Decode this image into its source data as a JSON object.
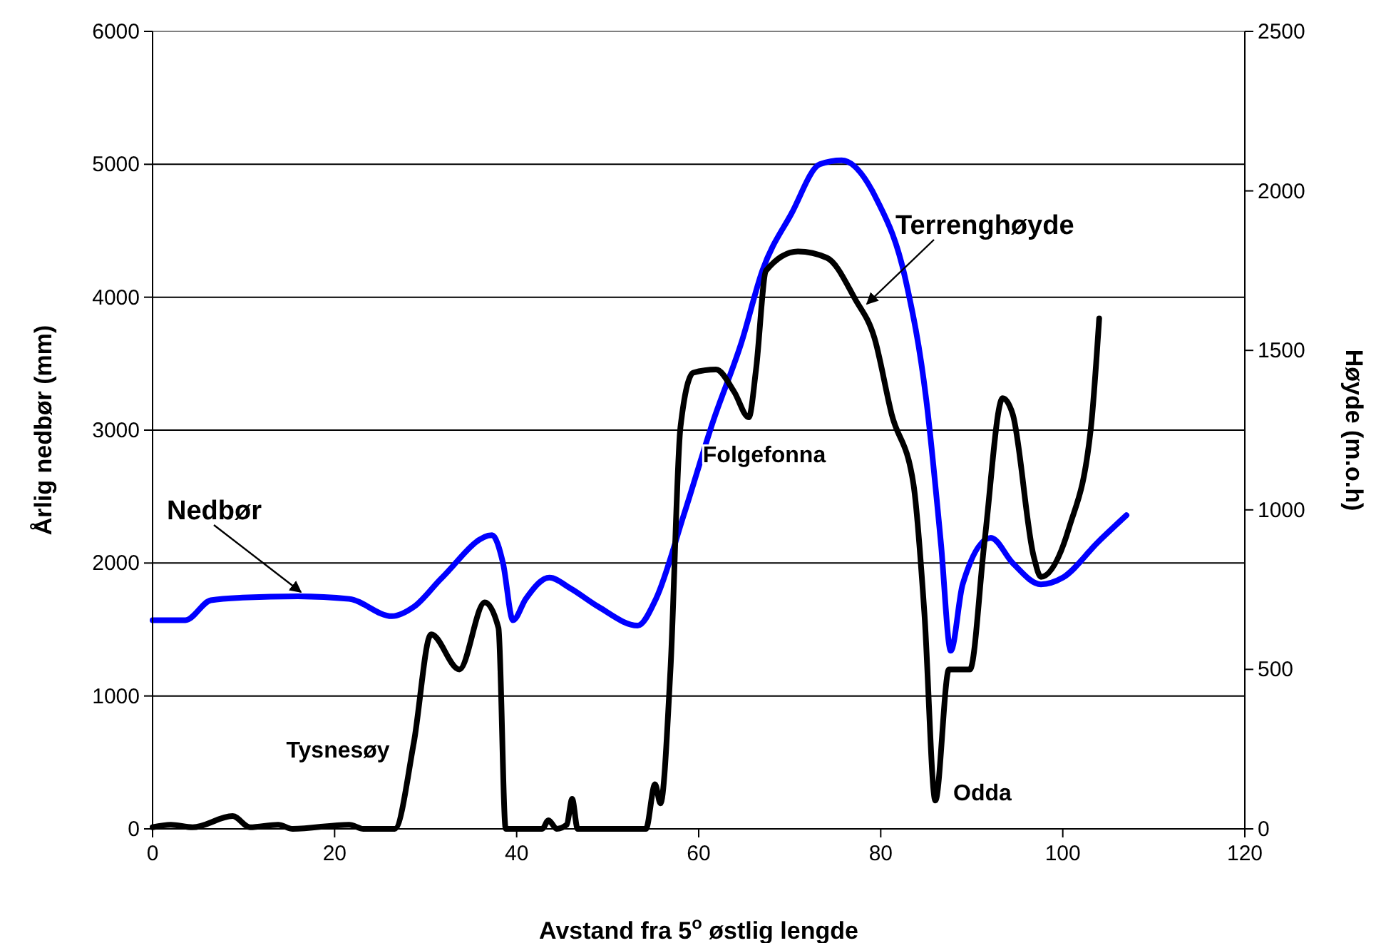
{
  "chart_data": {
    "type": "line",
    "xlabel": "Avstand fra 5$^{o}$ østlig lengde",
    "ylabel": "Årlig nedbør (mm)",
    "y2label": "Høyde (m.o.h)",
    "xlim": [
      0,
      120
    ],
    "xticks": [
      0,
      20,
      40,
      60,
      80,
      100,
      120
    ],
    "ylim": [
      0,
      6000
    ],
    "yticks": [
      0,
      1000,
      2000,
      3000,
      4000,
      5000,
      6000
    ],
    "y2lim": [
      0,
      2500
    ],
    "y2ticks": [
      0,
      500,
      1000,
      1500,
      2000,
      2500
    ],
    "grid": "y",
    "marker": "none",
    "line_style": "solid",
    "series": [
      {
        "name": "Nedbør",
        "color": "#0000ff",
        "x": [
          0,
          3.6,
          6.4,
          9.9,
          16,
          21.6,
          26.3,
          28.7,
          31.8,
          37.3,
          38.5,
          39.6,
          41,
          43.6,
          45.9,
          49,
          53.3,
          55.3,
          58.4,
          61.6,
          64.7,
          67,
          70.2,
          73.3,
          75.7,
          79.6,
          82.7,
          85,
          86.6,
          87.7,
          89,
          92.1,
          94.5,
          97.6,
          100,
          103.9,
          107
        ],
        "values": [
          1570,
          1570,
          1720,
          1740,
          1750,
          1730,
          1600,
          1670,
          1890,
          2210,
          2000,
          1570,
          1730,
          1890,
          1810,
          1670,
          1530,
          1730,
          2370,
          3070,
          3660,
          4200,
          4630,
          5000,
          5030,
          4730,
          4140,
          3230,
          2160,
          1340,
          1840,
          2190,
          2000,
          1840,
          1890,
          2160,
          2360
        ]
      },
      {
        "name": "Terrenghøyde",
        "color": "#000000",
        "axis": "y2",
        "x": [
          0,
          2,
          4.4,
          8.8,
          10.7,
          13.8,
          15.4,
          21.6,
          23.2,
          26.6,
          28.7,
          30.6,
          33.7,
          36.5,
          38,
          38.8,
          42.8,
          43.5,
          44.4,
          45.5,
          46.1,
          46.7,
          54.2,
          55.2,
          55.8,
          56.9,
          58,
          59.4,
          61.9,
          63.9,
          65.5,
          66.3,
          67.4,
          70.9,
          74.1,
          77.2,
          79.3,
          81.2,
          83.6,
          84.8,
          86,
          87.5,
          89.8,
          91.4,
          93.4,
          94.5,
          96.8,
          97.6,
          100.7,
          103.1,
          104
        ],
        "values": [
          5,
          13,
          5,
          40,
          5,
          13,
          0,
          13,
          0,
          0,
          270,
          610,
          500,
          710,
          630,
          0,
          0,
          27,
          0,
          13,
          94,
          0,
          0,
          140,
          80,
          500,
          1260,
          1430,
          1440,
          1370,
          1290,
          1440,
          1750,
          1810,
          1790,
          1660,
          1540,
          1300,
          1080,
          675,
          89,
          500,
          500,
          900,
          1350,
          1300,
          855,
          790,
          945,
          1260,
          1600
        ]
      }
    ],
    "annotations": [
      "Folgefonna",
      "Tysnesøy",
      "Odda"
    ]
  }
}
